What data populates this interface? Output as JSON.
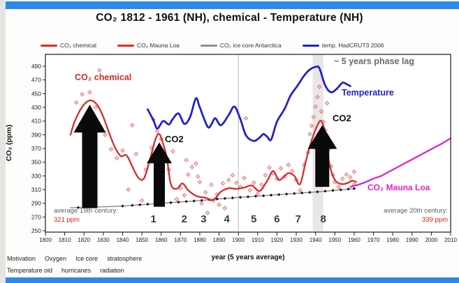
{
  "frame": {
    "top_bar_color": "#2f87ea",
    "bottom_bar_color": "#2f87ea"
  },
  "colors": {
    "red": "#d92b2b",
    "blue": "#2121cc",
    "magenta": "#e621c8",
    "gray_text": "#6a6a6a",
    "value_red": "#e01616",
    "ink": "#1a1a1a"
  },
  "title": "CO₂ 1812 - 1961 (NH), chemical - Temperature (NH)",
  "legend": [
    {
      "label": "CO₂ chemical",
      "color": "#d92b2b"
    },
    {
      "label": "CO₂  Mauna Loa",
      "color": "#d92b2b"
    },
    {
      "label": "CO₂ ice core Antarctica",
      "color": "#8f8f8f"
    },
    {
      "label": "temp. HadCRUT3 2006",
      "color": "#2121cc"
    }
  ],
  "annotations": {
    "co2_chemical": "CO₂ chemical",
    "co2_1860": "CO2",
    "co2_1940": "CO2",
    "temperature": "Temperature",
    "phase_lag": "~ 5 years phase lag",
    "mauna_loa": "CO₂ Mauna Loa"
  },
  "footer": {
    "xlabel": "year (5 years average)",
    "keywords_row1": [
      "Motivation",
      "Oxygen",
      "Ice core",
      "stratosphere"
    ],
    "keywords_row2": [
      "Temperature old",
      "hurricanes",
      "radiation"
    ]
  },
  "chart_data": {
    "type": "line",
    "title": "CO₂ 1812 - 1961 (NH), chemical - Temperature (NH)",
    "xlabel": "year (5 years average)",
    "ylabel": "CO₂ (ppm)",
    "xlim": [
      1800,
      2010
    ],
    "ylim": [
      250,
      490
    ],
    "xticks": [
      1800,
      1810,
      1820,
      1830,
      1840,
      1850,
      1860,
      1870,
      1880,
      1890,
      1900,
      1910,
      1920,
      1930,
      1940,
      1950,
      1960,
      1970,
      1980,
      1990,
      2000,
      2010
    ],
    "yticks": [
      250,
      270,
      290,
      310,
      330,
      350,
      370,
      390,
      410,
      430,
      450,
      470,
      490
    ],
    "grid": false,
    "vline_year": 1900,
    "highlight_band": {
      "from": 1938.5,
      "to": 1944
    },
    "series": [
      {
        "name": "CO₂ ice core Antarctica",
        "color": "#8f8f8f",
        "width": 1.5,
        "marker": "diamond",
        "marker_color": "#151515",
        "marker_years": [
          1817,
          1840,
          1845,
          1849,
          1853,
          1857,
          1861,
          1865,
          1869,
          1873,
          1877,
          1881,
          1885,
          1889,
          1893,
          1897,
          1901,
          1905,
          1909,
          1913,
          1917,
          1921,
          1925,
          1929,
          1933,
          1937,
          1941,
          1945,
          1949,
          1953,
          1957,
          1960
        ],
        "points": [
          [
            1813,
            283.5
          ],
          [
            1820,
            284
          ],
          [
            1830,
            285
          ],
          [
            1840,
            286
          ],
          [
            1850,
            288
          ],
          [
            1860,
            290
          ],
          [
            1870,
            292
          ],
          [
            1880,
            294
          ],
          [
            1890,
            296.5
          ],
          [
            1900,
            298.5
          ],
          [
            1910,
            300.5
          ],
          [
            1920,
            302.5
          ],
          [
            1930,
            304.5
          ],
          [
            1940,
            306.5
          ],
          [
            1950,
            309
          ],
          [
            1960,
            311.5
          ]
        ]
      },
      {
        "name": "CO₂ chemical",
        "color": "#d92b2b",
        "width": 2.3,
        "points": [
          [
            1813,
            390
          ],
          [
            1815,
            408
          ],
          [
            1818,
            426
          ],
          [
            1821,
            437
          ],
          [
            1824,
            440
          ],
          [
            1827,
            433
          ],
          [
            1830,
            416
          ],
          [
            1833,
            393
          ],
          [
            1836,
            372
          ],
          [
            1839,
            359
          ],
          [
            1842,
            360
          ],
          [
            1845,
            344
          ],
          [
            1848,
            328
          ],
          [
            1851,
            326
          ],
          [
            1854,
            352
          ],
          [
            1857,
            383
          ],
          [
            1859,
            391
          ],
          [
            1861,
            377
          ],
          [
            1863,
            355
          ],
          [
            1865,
            318
          ],
          [
            1868,
            311
          ],
          [
            1871,
            319
          ],
          [
            1874,
            309
          ],
          [
            1878,
            301
          ],
          [
            1883,
            298
          ],
          [
            1887,
            295
          ],
          [
            1891,
            307
          ],
          [
            1895,
            312
          ],
          [
            1899,
            311
          ],
          [
            1903,
            313
          ],
          [
            1907,
            316
          ],
          [
            1911,
            308
          ],
          [
            1915,
            323
          ],
          [
            1918,
            337
          ],
          [
            1921,
            324
          ],
          [
            1924,
            330
          ],
          [
            1926,
            334
          ],
          [
            1929,
            330
          ],
          [
            1932,
            318
          ],
          [
            1935,
            352
          ],
          [
            1938,
            382
          ],
          [
            1941,
            404
          ],
          [
            1943,
            410
          ],
          [
            1945,
            392
          ],
          [
            1947,
            350
          ],
          [
            1949,
            330
          ],
          [
            1951,
            321
          ],
          [
            1954,
            318
          ],
          [
            1957,
            320
          ],
          [
            1959,
            323
          ],
          [
            1961,
            321
          ]
        ]
      },
      {
        "name": "temp. HadCRUT3 2006",
        "color": "#2121cc",
        "width": 2.8,
        "points": [
          [
            1853,
            427
          ],
          [
            1856,
            411
          ],
          [
            1858,
            399
          ],
          [
            1861,
            410
          ],
          [
            1864,
            405
          ],
          [
            1866,
            413
          ],
          [
            1869,
            421
          ],
          [
            1872,
            406
          ],
          [
            1875,
            416
          ],
          [
            1878,
            443
          ],
          [
            1880,
            430
          ],
          [
            1884,
            402
          ],
          [
            1886,
            405
          ],
          [
            1888,
            414
          ],
          [
            1891,
            404
          ],
          [
            1895,
            419
          ],
          [
            1898,
            431
          ],
          [
            1901,
            413
          ],
          [
            1904,
            389
          ],
          [
            1908,
            381
          ],
          [
            1911,
            386
          ],
          [
            1913,
            391
          ],
          [
            1915,
            387
          ],
          [
            1917,
            383
          ],
          [
            1920,
            409
          ],
          [
            1924,
            428
          ],
          [
            1927,
            447
          ],
          [
            1931,
            463
          ],
          [
            1934,
            476
          ],
          [
            1937,
            485
          ],
          [
            1940,
            489
          ],
          [
            1942,
            487
          ],
          [
            1945,
            462
          ],
          [
            1948,
            452
          ],
          [
            1951,
            457
          ],
          [
            1954,
            466
          ],
          [
            1956,
            464
          ],
          [
            1958,
            461
          ]
        ]
      },
      {
        "name": "CO₂ Mauna Loa",
        "color": "#e621c8",
        "width": 2.3,
        "points": [
          [
            1958,
            314
          ],
          [
            1962,
            317
          ],
          [
            1966,
            321
          ],
          [
            1970,
            326
          ],
          [
            1974,
            330
          ],
          [
            1978,
            336
          ],
          [
            1982,
            342
          ],
          [
            1986,
            348
          ],
          [
            1990,
            354
          ],
          [
            1994,
            360
          ],
          [
            1998,
            366
          ],
          [
            2002,
            372
          ],
          [
            2006,
            378
          ],
          [
            2010,
            385
          ]
        ]
      }
    ],
    "scatter": {
      "name": "CO₂ chemical measurements",
      "color": "#e34b52",
      "points": [
        [
          1816,
          437
        ],
        [
          1819,
          449
        ],
        [
          1823,
          452
        ],
        [
          1826,
          430
        ],
        [
          1828,
          484
        ],
        [
          1831,
          390
        ],
        [
          1834,
          369
        ],
        [
          1837,
          356
        ],
        [
          1840,
          367
        ],
        [
          1843,
          310
        ],
        [
          1845,
          404
        ],
        [
          1847,
          362
        ],
        [
          1850,
          294
        ],
        [
          1852,
          339
        ],
        [
          1855,
          371
        ],
        [
          1856,
          412
        ],
        [
          1858,
          395
        ],
        [
          1860,
          384
        ],
        [
          1862,
          357
        ],
        [
          1864,
          339
        ],
        [
          1866,
          366
        ],
        [
          1868,
          296
        ],
        [
          1870,
          312
        ],
        [
          1872,
          302
        ],
        [
          1873,
          353
        ],
        [
          1874,
          332
        ],
        [
          1876,
          343
        ],
        [
          1878,
          348
        ],
        [
          1879,
          329
        ],
        [
          1880,
          321
        ],
        [
          1881,
          290
        ],
        [
          1883,
          306
        ],
        [
          1884,
          276
        ],
        [
          1886,
          317
        ],
        [
          1887,
          294
        ],
        [
          1889,
          303
        ],
        [
          1890,
          288
        ],
        [
          1892,
          319
        ],
        [
          1893,
          283
        ],
        [
          1895,
          324
        ],
        [
          1897,
          331
        ],
        [
          1899,
          320
        ],
        [
          1901,
          314
        ],
        [
          1903,
          327
        ],
        [
          1904,
          414
        ],
        [
          1906,
          309
        ],
        [
          1908,
          320
        ],
        [
          1910,
          304
        ],
        [
          1912,
          317
        ],
        [
          1914,
          331
        ],
        [
          1916,
          342
        ],
        [
          1918,
          334
        ],
        [
          1920,
          326
        ],
        [
          1922,
          341
        ],
        [
          1924,
          329
        ],
        [
          1926,
          346
        ],
        [
          1928,
          337
        ],
        [
          1930,
          324
        ],
        [
          1932,
          309
        ],
        [
          1934,
          346
        ],
        [
          1936,
          364
        ],
        [
          1937,
          391
        ],
        [
          1938,
          403
        ],
        [
          1939,
          416
        ],
        [
          1940,
          431
        ],
        [
          1941,
          445
        ],
        [
          1942,
          460
        ],
        [
          1943,
          424
        ],
        [
          1944,
          409
        ],
        [
          1945,
          397
        ],
        [
          1946,
          436
        ],
        [
          1947,
          369
        ],
        [
          1948,
          344
        ],
        [
          1949,
          331
        ],
        [
          1950,
          321
        ],
        [
          1952,
          314
        ],
        [
          1954,
          326
        ],
        [
          1956,
          332
        ],
        [
          1958,
          328
        ],
        [
          1960,
          336
        ],
        [
          1960,
          317
        ]
      ]
    },
    "event_markers": [
      {
        "label": "1",
        "year": 1856
      },
      {
        "label": "2",
        "year": 1872
      },
      {
        "label": "3",
        "year": 1882
      },
      {
        "label": "4",
        "year": 1894
      },
      {
        "label": "5",
        "year": 1908
      },
      {
        "label": "6",
        "year": 1920
      },
      {
        "label": "7",
        "year": 1931
      },
      {
        "label": "8",
        "year": 1944
      }
    ],
    "arrows": [
      {
        "year": 1823,
        "tip_ppm": 434,
        "base_ppm": 283
      },
      {
        "year": 1859,
        "tip_ppm": 379,
        "base_ppm": 285
      },
      {
        "year": 1943.5,
        "tip_ppm": 404,
        "base_ppm": 314
      }
    ],
    "averages": {
      "c19": {
        "label": "average 19th century:",
        "value": "321 ppm"
      },
      "c20": {
        "label": "average 20th century:",
        "value": "339 ppm"
      }
    }
  }
}
